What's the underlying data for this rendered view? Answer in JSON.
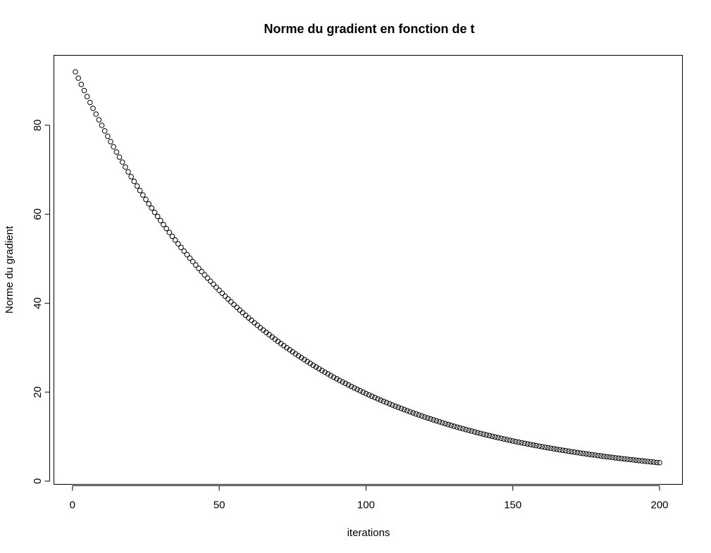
{
  "chart_data": {
    "type": "scatter",
    "title": "Norme du gradient en fonction de t",
    "xlabel": "iterations",
    "ylabel": "Norme du gradient",
    "xlim": [
      1,
      200
    ],
    "ylim": [
      0,
      92
    ],
    "x_ticks": [
      0,
      50,
      100,
      150,
      200
    ],
    "y_ticks": [
      0,
      20,
      40,
      60,
      80
    ],
    "grid": false,
    "legend": "none",
    "point_color": "#000000",
    "x_start": 1,
    "x_end": 200,
    "y_first": 92.0,
    "decay_per_iteration": 0.98455,
    "series": [
      {
        "x": [
          1,
          10,
          20,
          30,
          40,
          50,
          60,
          70,
          80,
          90,
          100,
          110,
          120,
          130,
          140,
          150,
          160,
          170,
          180,
          190,
          200
        ],
        "y": [
          92.0,
          80.2,
          68.5,
          57.5,
          48.5,
          40.9,
          34.5,
          29.0,
          24.5,
          20.7,
          17.4,
          14.7,
          12.4,
          10.4,
          8.8,
          7.4,
          6.3,
          5.3,
          4.5,
          3.8,
          3.1
        ]
      }
    ]
  }
}
